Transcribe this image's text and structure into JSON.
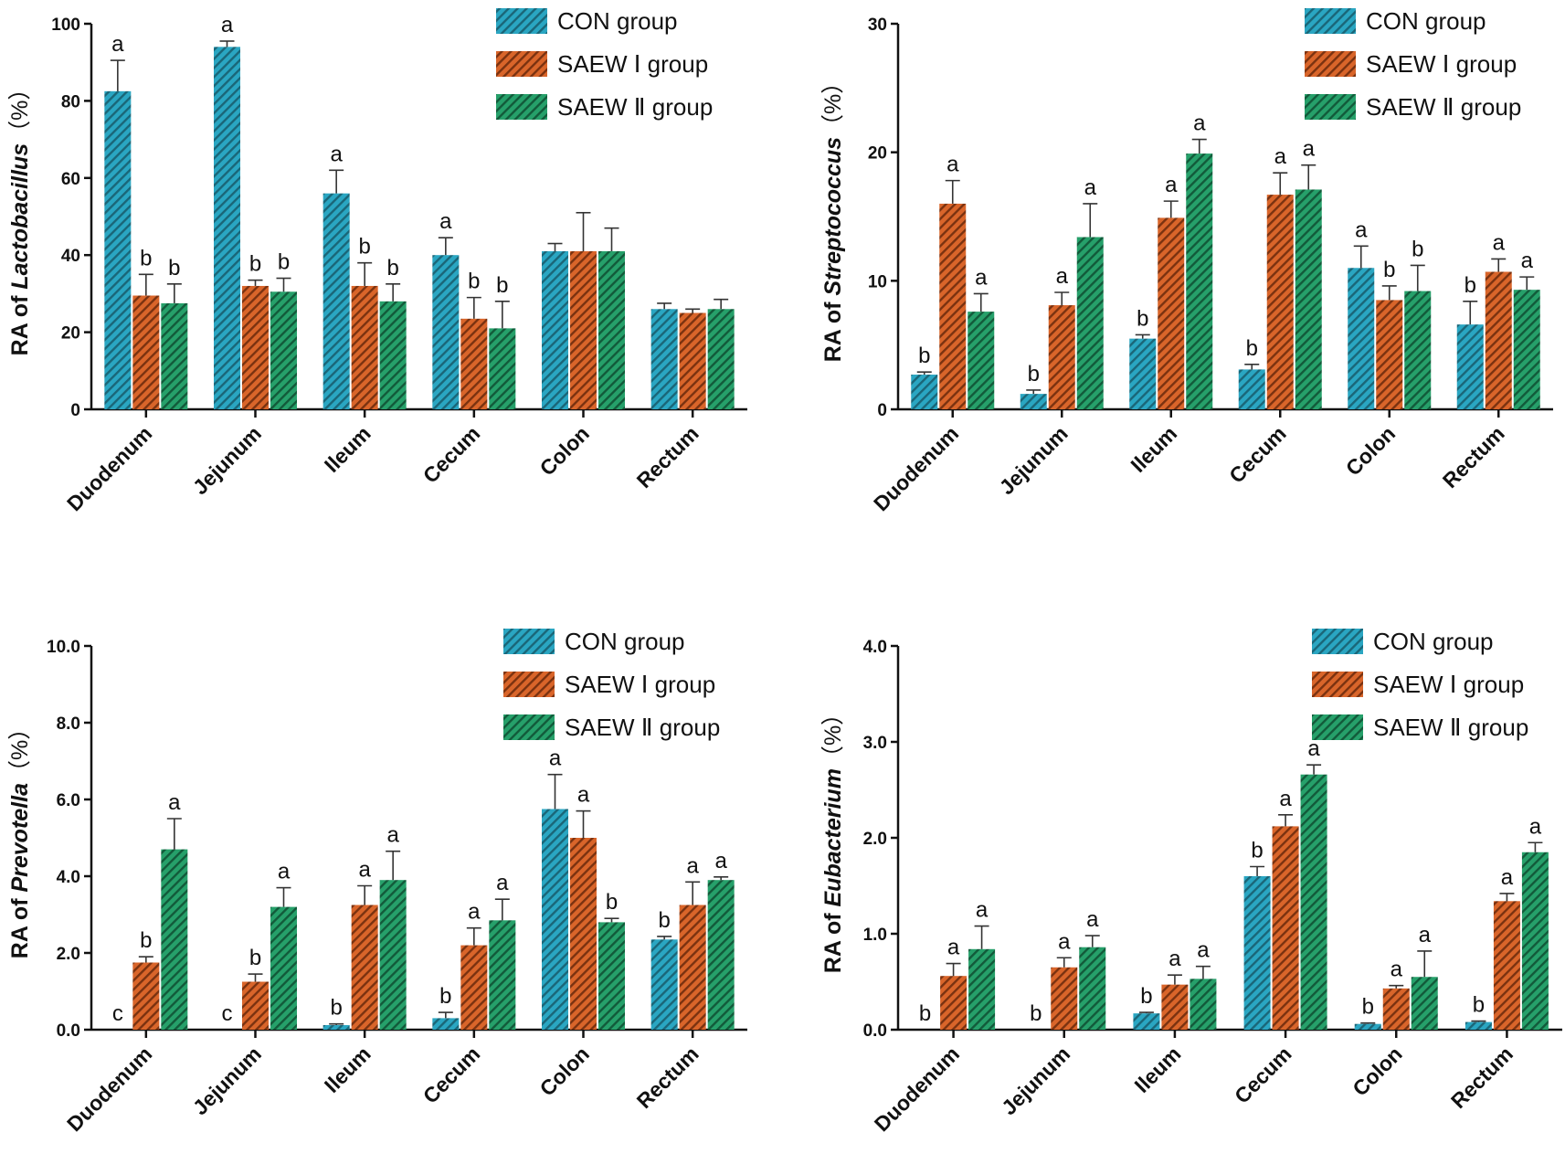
{
  "chart_data": [
    {
      "type": "bar",
      "categories": [
        "Duodenum",
        "Jejunum",
        "Ileum",
        "Cecum",
        "Colon",
        "Rectum"
      ],
      "ylabel_prefix": "RA of ",
      "ylabel_italic": "Lactobacillus",
      "ylabel_suffix": "（%）",
      "ylim": [
        0,
        100
      ],
      "yticks": [
        0,
        20,
        40,
        60,
        80,
        100
      ],
      "ytick_labels": [
        "0",
        "20",
        "40",
        "60",
        "80",
        "100"
      ],
      "series": [
        {
          "name": "CON group",
          "values": [
            82.5,
            94,
            56,
            40,
            41,
            26
          ],
          "errors": [
            8,
            1.5,
            6,
            4.5,
            2,
            1.5
          ],
          "sig": [
            "a",
            "a",
            "a",
            "a",
            "",
            ""
          ]
        },
        {
          "name": "SAEW Ⅰ group",
          "values": [
            29.5,
            32,
            32,
            23.5,
            41,
            25
          ],
          "errors": [
            5.5,
            1.5,
            6,
            5.5,
            10,
            1
          ],
          "sig": [
            "b",
            "b",
            "b",
            "b",
            "",
            ""
          ]
        },
        {
          "name": "SAEW Ⅱ group",
          "values": [
            27.5,
            30.5,
            28,
            21,
            41,
            26
          ],
          "errors": [
            5,
            3.5,
            4.5,
            7,
            6,
            2.5
          ],
          "sig": [
            "b",
            "b",
            "b",
            "b",
            "",
            ""
          ]
        }
      ]
    },
    {
      "type": "bar",
      "categories": [
        "Duodenum",
        "Jejunum",
        "Ileum",
        "Cecum",
        "Colon",
        "Rectum"
      ],
      "ylabel_prefix": "RA of ",
      "ylabel_italic": "Streptococcus",
      "ylabel_suffix": "（%）",
      "ylim": [
        0,
        30
      ],
      "yticks": [
        0,
        10,
        20,
        30
      ],
      "ytick_labels": [
        "0",
        "10",
        "20",
        "30"
      ],
      "series": [
        {
          "name": "CON group",
          "values": [
            2.7,
            1.2,
            5.5,
            3.1,
            11,
            6.6
          ],
          "errors": [
            0.2,
            0.3,
            0.3,
            0.4,
            1.7,
            1.8
          ],
          "sig": [
            "b",
            "b",
            "b",
            "b",
            "a",
            "b"
          ]
        },
        {
          "name": "SAEW Ⅰ group",
          "values": [
            16,
            8.1,
            14.9,
            16.7,
            8.5,
            10.7
          ],
          "errors": [
            1.8,
            1,
            1.3,
            1.7,
            1.1,
            1
          ],
          "sig": [
            "a",
            "a",
            "a",
            "a",
            "b",
            "a"
          ]
        },
        {
          "name": "SAEW Ⅱ group",
          "values": [
            7.6,
            13.4,
            19.9,
            17.1,
            9.2,
            9.3
          ],
          "errors": [
            1.4,
            2.6,
            1.1,
            1.9,
            2,
            1
          ],
          "sig": [
            "a",
            "a",
            "a",
            "a",
            "b",
            "a"
          ]
        }
      ]
    },
    {
      "type": "bar",
      "categories": [
        "Duodenum",
        "Jejunum",
        "Ileum",
        "Cecum",
        "Colon",
        "Rectum"
      ],
      "ylabel_prefix": "RA of ",
      "ylabel_italic": "Prevotella",
      "ylabel_suffix": "（%）",
      "ylim": [
        0,
        10
      ],
      "yticks": [
        0,
        2,
        4,
        6,
        8,
        10
      ],
      "ytick_labels": [
        "0.0",
        "2.0",
        "4.0",
        "6.0",
        "8.0",
        "10.0"
      ],
      "series": [
        {
          "name": "CON group",
          "values": [
            0,
            0,
            0.12,
            0.3,
            5.75,
            2.35
          ],
          "errors": [
            0,
            0,
            0.03,
            0.15,
            0.9,
            0.08
          ],
          "sig": [
            "c",
            "c",
            "b",
            "b",
            "a",
            "b"
          ]
        },
        {
          "name": "SAEW Ⅰ group",
          "values": [
            1.75,
            1.25,
            3.25,
            2.2,
            5,
            3.25
          ],
          "errors": [
            0.15,
            0.2,
            0.5,
            0.45,
            0.7,
            0.6
          ],
          "sig": [
            "b",
            "b",
            "a",
            "a",
            "a",
            "a"
          ]
        },
        {
          "name": "SAEW Ⅱ group",
          "values": [
            4.7,
            3.2,
            3.9,
            2.85,
            2.8,
            3.9
          ],
          "errors": [
            0.8,
            0.5,
            0.75,
            0.55,
            0.1,
            0.08
          ],
          "sig": [
            "a",
            "a",
            "a",
            "a",
            "b",
            "a"
          ]
        }
      ]
    },
    {
      "type": "bar",
      "categories": [
        "Duodenum",
        "Jejunum",
        "Ileum",
        "Cecum",
        "Colon",
        "Rectum"
      ],
      "ylabel_prefix": "RA of ",
      "ylabel_italic": "Eubacterium",
      "ylabel_suffix": "（%）",
      "ylim": [
        0,
        4
      ],
      "yticks": [
        0,
        1,
        2,
        3,
        4
      ],
      "ytick_labels": [
        "0.0",
        "1.0",
        "2.0",
        "3.0",
        "4.0"
      ],
      "series": [
        {
          "name": "CON group",
          "values": [
            0,
            0,
            0.17,
            1.6,
            0.06,
            0.08
          ],
          "errors": [
            0,
            0,
            0.01,
            0.1,
            0.01,
            0.01
          ],
          "sig": [
            "b",
            "b",
            "b",
            "b",
            "b",
            "b"
          ]
        },
        {
          "name": "SAEW Ⅰ group",
          "values": [
            0.56,
            0.65,
            0.47,
            2.12,
            0.43,
            1.34
          ],
          "errors": [
            0.13,
            0.1,
            0.1,
            0.12,
            0.03,
            0.08
          ],
          "sig": [
            "a",
            "a",
            "a",
            "a",
            "a",
            "a"
          ]
        },
        {
          "name": "SAEW Ⅱ group",
          "values": [
            0.84,
            0.86,
            0.53,
            2.66,
            0.55,
            1.85
          ],
          "errors": [
            0.24,
            0.12,
            0.13,
            0.1,
            0.27,
            0.1
          ],
          "sig": [
            "a",
            "a",
            "a",
            "a",
            "a",
            "a"
          ]
        }
      ]
    }
  ],
  "colors": {
    "con": "#2aa6c2",
    "con_stripe": "#1a6678",
    "saew1": "#d9652a",
    "saew1_stripe": "#7a3210",
    "saew2": "#26a06a",
    "saew2_stripe": "#125a3a",
    "axis": "#111111"
  }
}
